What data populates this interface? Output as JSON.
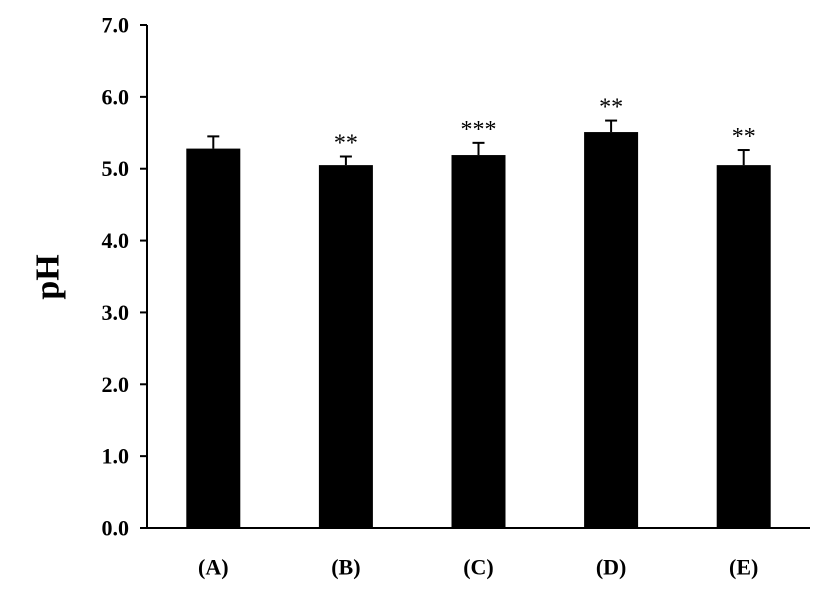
{
  "chart_data": {
    "type": "bar",
    "categories": [
      "(A)",
      "(B)",
      "(C)",
      "(D)",
      "(E)"
    ],
    "values": [
      5.28,
      5.05,
      5.19,
      5.51,
      5.05
    ],
    "errors": [
      0.17,
      0.12,
      0.17,
      0.16,
      0.21
    ],
    "significance": [
      "",
      "**",
      "***",
      "**",
      "**"
    ],
    "ylabel": "pH",
    "xlabel": "",
    "ylim": [
      0,
      7
    ],
    "yticks": [
      "0.0",
      "1.0",
      "2.0",
      "3.0",
      "4.0",
      "5.0",
      "6.0",
      "7.0"
    ],
    "bar_color": "#000000",
    "grid": false,
    "legend": "none"
  }
}
